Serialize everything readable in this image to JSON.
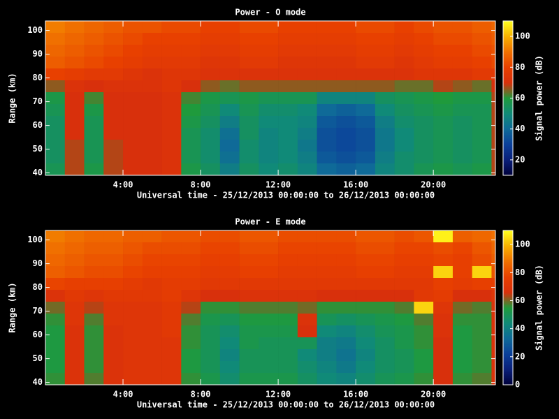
{
  "chart_data": [
    {
      "type": "heatmap",
      "title": "Power - O mode",
      "x_label": "Universal time - 25/12/2013 00:00:00 to 26/12/2013 00:00:00",
      "y_label": "Range (km)",
      "colorbar_label": "Signal power (dB)",
      "xlim": [
        0,
        23.2
      ],
      "xticks": [
        {
          "value": 4,
          "label": "4:00"
        },
        {
          "value": 8,
          "label": "8:00"
        },
        {
          "value": 12,
          "label": "12:00"
        },
        {
          "value": 16,
          "label": "16:00"
        },
        {
          "value": 20,
          "label": "20:00"
        }
      ],
      "ylim": [
        39,
        104
      ],
      "yticks": [
        40,
        50,
        60,
        70,
        80,
        90,
        100
      ],
      "zlim": [
        10,
        110
      ],
      "zticks": [
        20,
        40,
        60,
        80,
        100
      ],
      "colormap": [
        "#00003a",
        "#0a1f78",
        "#0b3f9a",
        "#0f6a98",
        "#108a78",
        "#1f9a3c",
        "#d8300c",
        "#e84000",
        "#f07000",
        "#f8b000",
        "#ffff20"
      ],
      "x_bins": [
        0,
        1,
        2,
        3,
        4,
        5,
        6,
        7,
        8,
        9,
        10,
        11,
        12,
        13,
        14,
        15,
        16,
        17,
        18,
        19,
        20,
        21,
        22,
        23,
        23.2
      ],
      "y_bins": [
        104,
        99,
        94,
        89,
        84,
        79,
        74,
        69,
        64,
        59,
        54,
        49,
        44,
        39
      ],
      "z": [
        [
          92,
          90,
          88,
          86,
          84,
          84,
          82,
          82,
          80,
          80,
          82,
          82,
          80,
          80,
          80,
          80,
          82,
          82,
          80,
          82,
          84,
          84,
          86,
          88
        ],
        [
          90,
          88,
          86,
          84,
          82,
          80,
          80,
          80,
          78,
          78,
          80,
          80,
          78,
          78,
          78,
          78,
          80,
          80,
          78,
          80,
          82,
          82,
          84,
          86
        ],
        [
          88,
          86,
          84,
          82,
          80,
          78,
          78,
          78,
          76,
          76,
          78,
          78,
          76,
          76,
          76,
          76,
          78,
          78,
          76,
          78,
          80,
          80,
          82,
          84
        ],
        [
          86,
          84,
          82,
          80,
          78,
          76,
          76,
          76,
          74,
          74,
          76,
          76,
          74,
          74,
          74,
          74,
          76,
          76,
          74,
          76,
          78,
          78,
          80,
          82
        ],
        [
          80,
          78,
          76,
          76,
          74,
          72,
          74,
          74,
          72,
          72,
          72,
          72,
          72,
          72,
          72,
          72,
          72,
          72,
          72,
          74,
          74,
          74,
          76,
          76
        ],
        [
          66,
          72,
          70,
          72,
          72,
          72,
          74,
          70,
          66,
          64,
          66,
          66,
          66,
          66,
          66,
          66,
          66,
          66,
          64,
          64,
          68,
          66,
          64,
          70
        ],
        [
          58,
          70,
          62,
          70,
          70,
          70,
          72,
          62,
          58,
          56,
          58,
          56,
          56,
          56,
          48,
          48,
          48,
          54,
          56,
          58,
          60,
          58,
          58,
          68
        ],
        [
          56,
          70,
          58,
          70,
          70,
          70,
          72,
          60,
          56,
          50,
          56,
          52,
          52,
          50,
          40,
          38,
          40,
          50,
          54,
          56,
          58,
          56,
          56,
          68
        ],
        [
          54,
          70,
          56,
          70,
          70,
          70,
          72,
          58,
          54,
          46,
          54,
          50,
          50,
          48,
          36,
          34,
          36,
          46,
          52,
          54,
          56,
          54,
          56,
          68
        ],
        [
          54,
          70,
          56,
          70,
          70,
          70,
          72,
          56,
          52,
          42,
          54,
          48,
          50,
          46,
          34,
          32,
          34,
          44,
          50,
          54,
          56,
          54,
          56,
          68
        ],
        [
          54,
          68,
          56,
          68,
          70,
          70,
          72,
          56,
          52,
          40,
          52,
          48,
          50,
          44,
          34,
          32,
          34,
          44,
          50,
          54,
          56,
          54,
          56,
          68
        ],
        [
          54,
          68,
          56,
          68,
          70,
          70,
          72,
          56,
          52,
          42,
          52,
          48,
          50,
          46,
          36,
          34,
          36,
          46,
          52,
          54,
          56,
          54,
          56,
          68
        ],
        [
          56,
          68,
          58,
          68,
          70,
          70,
          72,
          58,
          54,
          46,
          54,
          50,
          52,
          48,
          40,
          38,
          40,
          48,
          52,
          56,
          58,
          56,
          58,
          68
        ]
      ]
    },
    {
      "type": "heatmap",
      "title": "Power - E mode",
      "x_label": "Universal time - 25/12/2013 00:00:00 to 26/12/2013 00:00:00",
      "y_label": "Range (km)",
      "colorbar_label": "Signal power (dB)",
      "xlim": [
        0,
        23.2
      ],
      "xticks": [
        {
          "value": 4,
          "label": "4:00"
        },
        {
          "value": 8,
          "label": "8:00"
        },
        {
          "value": 12,
          "label": "12:00"
        },
        {
          "value": 16,
          "label": "16:00"
        },
        {
          "value": 20,
          "label": "20:00"
        }
      ],
      "ylim": [
        39,
        104
      ],
      "yticks": [
        40,
        50,
        60,
        70,
        80,
        90,
        100
      ],
      "zlim": [
        0,
        110
      ],
      "zticks": [
        0,
        20,
        40,
        60,
        80,
        100
      ],
      "colormap": [
        "#00003a",
        "#0a1f78",
        "#0b3f9a",
        "#0f6a98",
        "#108a78",
        "#1f9a3c",
        "#d8300c",
        "#e84000",
        "#f07000",
        "#f8b000",
        "#ffff20"
      ],
      "x_bins": [
        0,
        1,
        2,
        3,
        4,
        5,
        6,
        7,
        8,
        9,
        10,
        11,
        12,
        13,
        14,
        15,
        16,
        17,
        18,
        19,
        20,
        21,
        22,
        23,
        23.2
      ],
      "y_bins": [
        104,
        99,
        94,
        89,
        84,
        79,
        74,
        69,
        64,
        59,
        54,
        49,
        44,
        39
      ],
      "z": [
        [
          90,
          88,
          86,
          86,
          84,
          84,
          82,
          82,
          80,
          80,
          82,
          82,
          80,
          80,
          80,
          80,
          82,
          82,
          80,
          82,
          108,
          84,
          86,
          88
        ],
        [
          88,
          86,
          84,
          84,
          82,
          80,
          80,
          80,
          78,
          78,
          80,
          80,
          78,
          78,
          78,
          78,
          80,
          80,
          78,
          78,
          80,
          78,
          82,
          86
        ],
        [
          86,
          84,
          82,
          82,
          80,
          78,
          78,
          78,
          76,
          76,
          78,
          78,
          76,
          76,
          76,
          76,
          78,
          78,
          76,
          76,
          78,
          76,
          80,
          84
        ],
        [
          84,
          82,
          80,
          80,
          78,
          76,
          76,
          76,
          74,
          74,
          76,
          76,
          74,
          74,
          74,
          74,
          76,
          76,
          74,
          74,
          104,
          76,
          104,
          82
        ],
        [
          78,
          76,
          76,
          76,
          74,
          72,
          74,
          74,
          72,
          72,
          72,
          72,
          72,
          72,
          72,
          72,
          72,
          72,
          72,
          72,
          76,
          74,
          76,
          76
        ],
        [
          68,
          72,
          70,
          72,
          72,
          72,
          74,
          70,
          66,
          66,
          68,
          68,
          68,
          68,
          66,
          66,
          66,
          66,
          66,
          72,
          74,
          66,
          66,
          70
        ],
        [
          60,
          70,
          64,
          70,
          70,
          70,
          72,
          64,
          56,
          56,
          58,
          58,
          58,
          60,
          56,
          56,
          56,
          56,
          58,
          104,
          70,
          60,
          58,
          68
        ],
        [
          56,
          70,
          58,
          70,
          70,
          70,
          72,
          58,
          52,
          50,
          54,
          54,
          54,
          68,
          50,
          48,
          50,
          52,
          54,
          58,
          68,
          56,
          56,
          68
        ],
        [
          54,
          68,
          56,
          68,
          70,
          70,
          72,
          56,
          50,
          46,
          52,
          52,
          52,
          66,
          44,
          42,
          46,
          50,
          52,
          56,
          68,
          54,
          56,
          68
        ],
        [
          54,
          68,
          56,
          68,
          70,
          70,
          70,
          56,
          50,
          44,
          52,
          50,
          50,
          50,
          40,
          38,
          44,
          48,
          52,
          56,
          66,
          54,
          56,
          68
        ],
        [
          54,
          68,
          56,
          68,
          70,
          70,
          70,
          54,
          50,
          42,
          50,
          50,
          50,
          44,
          40,
          36,
          42,
          48,
          50,
          54,
          66,
          54,
          56,
          68
        ],
        [
          54,
          68,
          56,
          68,
          70,
          70,
          70,
          54,
          50,
          44,
          50,
          50,
          50,
          46,
          42,
          38,
          44,
          48,
          50,
          54,
          66,
          54,
          56,
          68
        ],
        [
          56,
          68,
          58,
          68,
          70,
          70,
          70,
          56,
          52,
          46,
          52,
          52,
          52,
          48,
          44,
          42,
          46,
          50,
          52,
          56,
          66,
          56,
          58,
          68
        ]
      ]
    }
  ]
}
